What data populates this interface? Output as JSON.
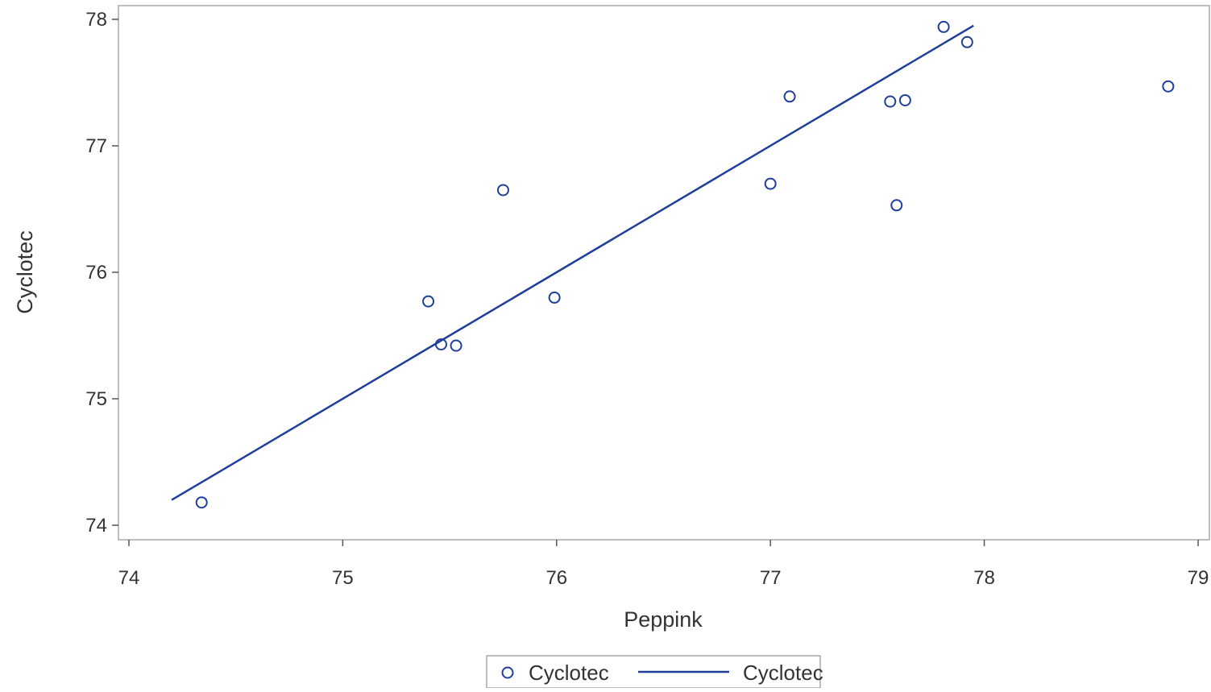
{
  "chart_data": {
    "type": "scatter",
    "title": "",
    "xlabel": "Peppink",
    "ylabel": "Cyclotec",
    "xlim": [
      74,
      79
    ],
    "ylim": [
      74,
      78
    ],
    "x_ticks": [
      "74",
      "75",
      "76",
      "77",
      "78",
      "79"
    ],
    "y_ticks": [
      "74",
      "75",
      "76",
      "77",
      "78"
    ],
    "grid": false,
    "legend_position": "bottom",
    "series": [
      {
        "name": "Cyclotec",
        "kind": "scatter",
        "marker": "circle",
        "color": "#1f3f9b",
        "points": [
          {
            "x": 74.34,
            "y": 74.18
          },
          {
            "x": 75.4,
            "y": 75.77
          },
          {
            "x": 75.46,
            "y": 75.43
          },
          {
            "x": 75.53,
            "y": 75.42
          },
          {
            "x": 75.75,
            "y": 76.65
          },
          {
            "x": 75.99,
            "y": 75.8
          },
          {
            "x": 77.0,
            "y": 76.7
          },
          {
            "x": 77.09,
            "y": 77.39
          },
          {
            "x": 77.56,
            "y": 77.35
          },
          {
            "x": 77.59,
            "y": 76.53
          },
          {
            "x": 77.63,
            "y": 77.36
          },
          {
            "x": 77.81,
            "y": 77.94
          },
          {
            "x": 77.92,
            "y": 77.82
          },
          {
            "x": 78.86,
            "y": 77.47
          }
        ]
      },
      {
        "name": "Cyclotec",
        "kind": "line",
        "color": "#1f3f9b",
        "points": [
          {
            "x": 74.2,
            "y": 74.2
          },
          {
            "x": 77.95,
            "y": 77.95
          }
        ]
      }
    ]
  }
}
